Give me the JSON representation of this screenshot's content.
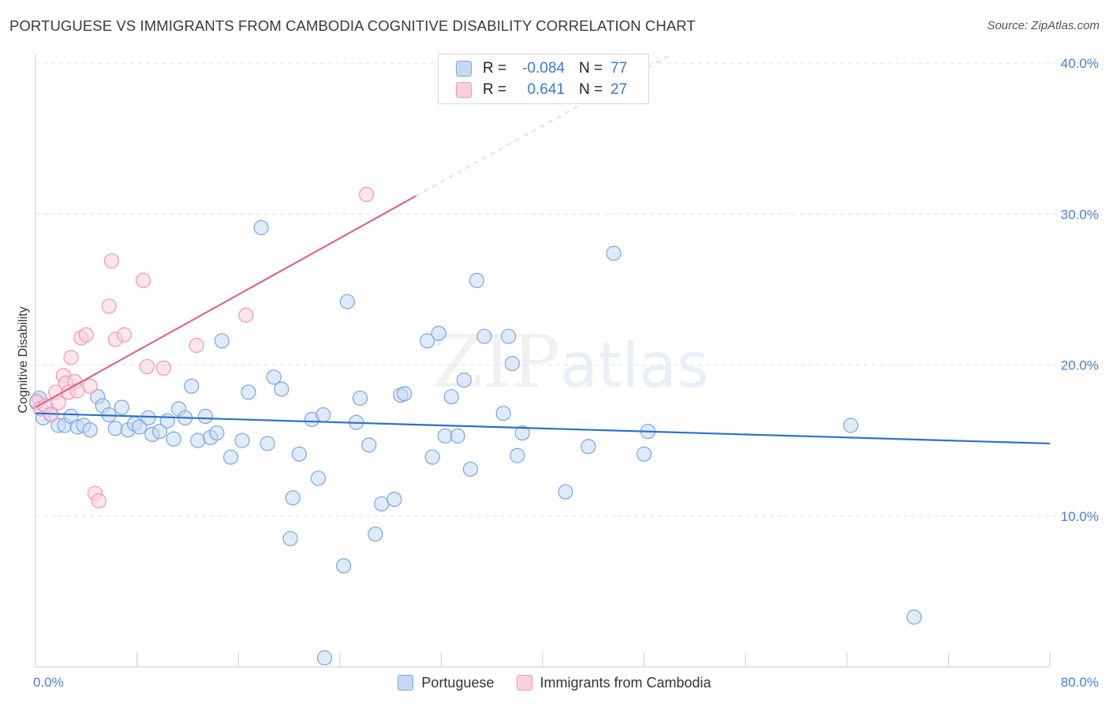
{
  "title": "PORTUGUESE VS IMMIGRANTS FROM CAMBODIA COGNITIVE DISABILITY CORRELATION CHART",
  "source": "Source: ZipAtlas.com",
  "watermark": {
    "zip": "ZIP",
    "atlas": "atlas"
  },
  "legend_top": {
    "rows": [
      {
        "r_label": "R =",
        "r_value": "-0.084",
        "n_label": "N =",
        "n_value": "77"
      },
      {
        "r_label": "R =",
        "r_value": "0.641",
        "n_label": "N =",
        "n_value": "27"
      }
    ]
  },
  "legend_bottom": {
    "items": [
      "Portuguese",
      "Immigrants from Cambodia"
    ]
  },
  "colors": {
    "portuguese_fill": "#c5d9f5",
    "portuguese_stroke": "#7aa6e2",
    "portuguese_line": "#2f6fcc",
    "cambodia_fill": "#fbd0dc",
    "cambodia_stroke": "#ee97b2",
    "cambodia_line": "#e06690",
    "tick_text": "#4a7fd0",
    "grid": "#e2e2e2"
  },
  "chart_data": {
    "type": "scatter",
    "title": "PORTUGUESE VS IMMIGRANTS FROM CAMBODIA COGNITIVE DISABILITY CORRELATION CHART",
    "xlabel": "",
    "ylabel": "Cognitive Disability",
    "xlim": [
      0,
      80
    ],
    "ylim": [
      0,
      40
    ],
    "x_ticks": [
      "0.0%",
      "80.0%"
    ],
    "y_ticks": [
      "10.0%",
      "20.0%",
      "30.0%",
      "40.0%"
    ],
    "y_tick_values": [
      10,
      20,
      30,
      40
    ],
    "grid": "horizontal dashed",
    "legend": "top-center",
    "series": [
      {
        "name": "Portuguese",
        "r": -0.084,
        "n": 77,
        "trend": {
          "x": [
            0,
            80
          ],
          "y": [
            16.8,
            14.8
          ]
        },
        "points": [
          [
            0.3,
            17.8
          ],
          [
            0.6,
            16.5
          ],
          [
            1.2,
            16.8
          ],
          [
            1.8,
            16.0
          ],
          [
            2.3,
            16.0
          ],
          [
            2.8,
            16.6
          ],
          [
            3.3,
            15.9
          ],
          [
            3.8,
            16.0
          ],
          [
            4.3,
            15.7
          ],
          [
            4.9,
            17.9
          ],
          [
            5.3,
            17.3
          ],
          [
            5.8,
            16.7
          ],
          [
            6.3,
            15.8
          ],
          [
            6.8,
            17.2
          ],
          [
            7.3,
            15.7
          ],
          [
            7.8,
            16.1
          ],
          [
            8.2,
            15.9
          ],
          [
            8.9,
            16.5
          ],
          [
            9.2,
            15.4
          ],
          [
            9.8,
            15.6
          ],
          [
            10.4,
            16.3
          ],
          [
            10.9,
            15.1
          ],
          [
            11.3,
            17.1
          ],
          [
            11.8,
            16.5
          ],
          [
            12.3,
            18.6
          ],
          [
            12.8,
            15.0
          ],
          [
            13.4,
            16.6
          ],
          [
            13.8,
            15.2
          ],
          [
            14.3,
            15.5
          ],
          [
            14.7,
            21.6
          ],
          [
            15.4,
            13.9
          ],
          [
            16.3,
            15.0
          ],
          [
            16.8,
            18.2
          ],
          [
            17.8,
            29.1
          ],
          [
            18.3,
            14.8
          ],
          [
            18.8,
            19.2
          ],
          [
            19.4,
            18.4
          ],
          [
            20.1,
            8.5
          ],
          [
            20.3,
            11.2
          ],
          [
            20.8,
            14.1
          ],
          [
            21.8,
            16.4
          ],
          [
            22.3,
            12.5
          ],
          [
            22.7,
            16.7
          ],
          [
            22.8,
            0.6
          ],
          [
            24.3,
            6.7
          ],
          [
            24.6,
            24.2
          ],
          [
            25.3,
            16.2
          ],
          [
            25.6,
            17.8
          ],
          [
            26.3,
            14.7
          ],
          [
            26.8,
            8.8
          ],
          [
            27.3,
            10.8
          ],
          [
            28.3,
            11.1
          ],
          [
            28.8,
            18.0
          ],
          [
            29.1,
            18.1
          ],
          [
            30.9,
            21.6
          ],
          [
            31.3,
            13.9
          ],
          [
            31.8,
            22.1
          ],
          [
            32.3,
            15.3
          ],
          [
            32.8,
            17.9
          ],
          [
            33.3,
            15.3
          ],
          [
            33.8,
            19.0
          ],
          [
            34.3,
            13.1
          ],
          [
            34.8,
            25.6
          ],
          [
            35.4,
            21.9
          ],
          [
            36.9,
            16.8
          ],
          [
            37.3,
            21.9
          ],
          [
            37.6,
            20.1
          ],
          [
            38.0,
            14.0
          ],
          [
            38.4,
            15.5
          ],
          [
            41.8,
            11.6
          ],
          [
            43.6,
            14.6
          ],
          [
            45.6,
            27.4
          ],
          [
            48.0,
            14.1
          ],
          [
            48.3,
            15.6
          ],
          [
            64.3,
            16.0
          ],
          [
            69.3,
            3.3
          ],
          [
            0.1,
            17.5
          ]
        ]
      },
      {
        "name": "Immigrants from Cambodia",
        "r": 0.641,
        "n": 27,
        "trend": {
          "x": [
            0,
            30
          ],
          "y": [
            17.2,
            31.2
          ]
        },
        "trend_extension": {
          "x": [
            30,
            50
          ],
          "y": [
            31.2,
            40.5
          ]
        },
        "points": [
          [
            0.1,
            17.6
          ],
          [
            0.4,
            17.1
          ],
          [
            0.8,
            17.3
          ],
          [
            1.2,
            16.7
          ],
          [
            1.6,
            18.2
          ],
          [
            1.8,
            17.5
          ],
          [
            2.2,
            19.3
          ],
          [
            2.4,
            18.8
          ],
          [
            2.6,
            18.2
          ],
          [
            2.8,
            20.5
          ],
          [
            3.1,
            18.9
          ],
          [
            3.3,
            18.3
          ],
          [
            3.6,
            21.8
          ],
          [
            4.0,
            22.0
          ],
          [
            4.3,
            18.6
          ],
          [
            4.7,
            11.5
          ],
          [
            5.0,
            11.0
          ],
          [
            5.8,
            23.9
          ],
          [
            6.0,
            26.9
          ],
          [
            6.3,
            21.7
          ],
          [
            7.0,
            22.0
          ],
          [
            8.5,
            25.6
          ],
          [
            8.8,
            19.9
          ],
          [
            10.1,
            19.8
          ],
          [
            12.7,
            21.3
          ],
          [
            16.6,
            23.3
          ],
          [
            26.1,
            31.3
          ]
        ]
      }
    ]
  }
}
